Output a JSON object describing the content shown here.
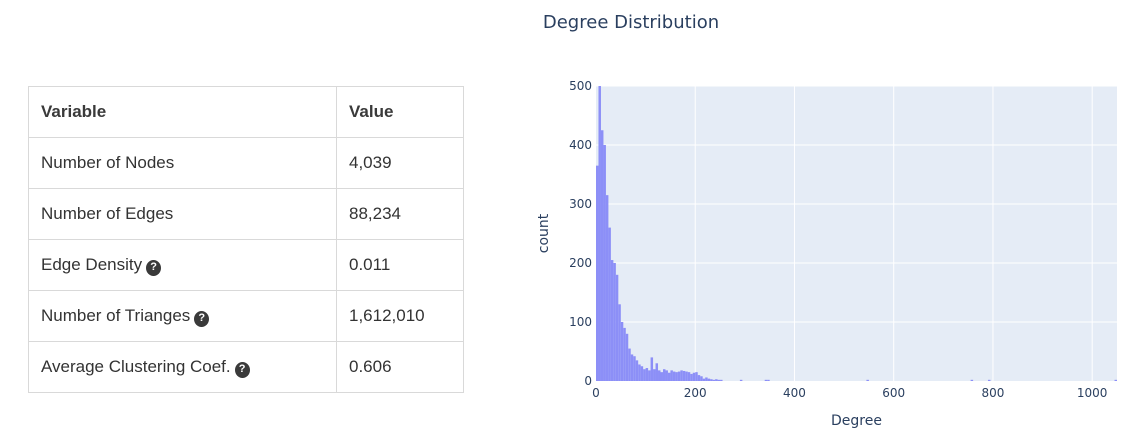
{
  "table": {
    "headers": [
      "Variable",
      "Value"
    ],
    "rows": [
      {
        "variable": "Number of Nodes",
        "value": "4,039",
        "help": false
      },
      {
        "variable": "Number of Edges",
        "value": "88,234",
        "help": false
      },
      {
        "variable": "Edge Density",
        "value": "0.011",
        "help": true
      },
      {
        "variable": "Number of Trianges",
        "value": "1,612,010",
        "help": true
      },
      {
        "variable": "Average Clustering Coef.",
        "value": "0.606",
        "help": true
      }
    ]
  },
  "help_glyph": "?",
  "colors": {
    "bar": "#8c8ff7",
    "plot_bg": "#e5ecf6",
    "grid": "#ffffff",
    "text": "#2a3f5f"
  },
  "chart_data": {
    "type": "bar",
    "title": "Degree Distribution",
    "xlabel": "Degree",
    "ylabel": "count",
    "xlim": [
      0,
      1050
    ],
    "ylim": [
      0,
      500
    ],
    "xticks": [
      0,
      200,
      400,
      600,
      800,
      1000
    ],
    "yticks": [
      0,
      100,
      200,
      300,
      400,
      500
    ],
    "grid": true,
    "bin_width": 5,
    "bins_start": [
      0,
      5,
      10,
      15,
      20,
      25,
      30,
      35,
      40,
      45,
      50,
      55,
      60,
      65,
      70,
      75,
      80,
      85,
      90,
      95,
      100,
      105,
      110,
      115,
      120,
      125,
      130,
      135,
      140,
      145,
      150,
      155,
      160,
      165,
      170,
      175,
      180,
      185,
      190,
      195,
      200,
      205,
      210,
      215,
      220,
      225,
      230,
      235,
      240,
      245,
      250,
      290,
      340,
      345,
      545,
      755,
      790,
      1045
    ],
    "counts": [
      365,
      500,
      425,
      400,
      315,
      260,
      205,
      200,
      180,
      130,
      100,
      90,
      80,
      55,
      45,
      42,
      35,
      28,
      25,
      20,
      22,
      18,
      40,
      20,
      30,
      18,
      15,
      20,
      18,
      14,
      18,
      16,
      15,
      16,
      18,
      17,
      16,
      15,
      12,
      14,
      15,
      10,
      8,
      4,
      6,
      4,
      3,
      2,
      3,
      2,
      2,
      2,
      2,
      2,
      2,
      2,
      2,
      2
    ]
  }
}
